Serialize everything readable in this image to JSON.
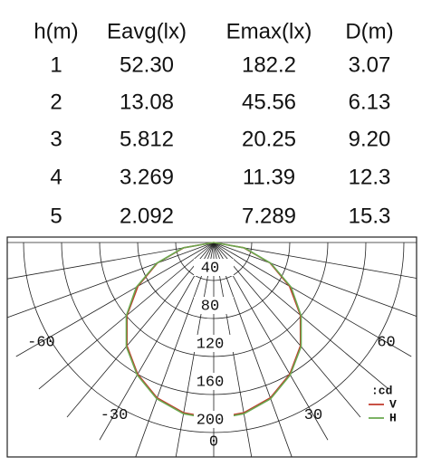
{
  "table": {
    "header": [
      "h(m)",
      "Eavg(lx)",
      "Emax(lx)",
      "D(m)"
    ],
    "rows": [
      [
        "1",
        "52.30",
        "182.2",
        "3.07"
      ],
      [
        "2",
        "13.08",
        "45.56",
        "6.13"
      ],
      [
        "3",
        "5.812",
        "20.25",
        "9.20"
      ],
      [
        "4",
        "3.269",
        "11.39",
        "12.3"
      ],
      [
        "5",
        "2.092",
        "7.289",
        "15.3"
      ]
    ]
  },
  "chart_data": {
    "type": "polar",
    "unit": ":cd",
    "theta": [
      -90,
      -80,
      -70,
      -60,
      -50,
      -40,
      -30,
      -20,
      -10,
      0,
      10,
      20,
      30,
      40,
      50,
      60,
      70,
      80,
      90
    ],
    "series": [
      {
        "name": "V",
        "color": "#c0392b",
        "values": [
          0,
          32,
          63,
          92,
          119,
          142,
          160,
          174,
          182,
          185,
          182,
          174,
          160,
          142,
          119,
          92,
          63,
          32,
          0
        ]
      },
      {
        "name": "H",
        "color": "#6aa84f",
        "values": [
          0,
          33,
          64,
          94,
          120,
          143,
          161,
          175,
          183,
          186,
          183,
          175,
          161,
          143,
          120,
          94,
          64,
          33,
          0
        ]
      }
    ],
    "rlim": [
      0,
      240
    ],
    "rticks": [
      40,
      80,
      120,
      160,
      200
    ],
    "thetaticks": [
      -60,
      -30,
      0,
      30,
      60
    ],
    "theta_grid": [
      -90,
      -80,
      -70,
      -60,
      -50,
      -40,
      -30,
      -20,
      -10,
      0,
      10,
      20,
      30,
      40,
      50,
      60,
      70,
      80,
      90
    ]
  }
}
